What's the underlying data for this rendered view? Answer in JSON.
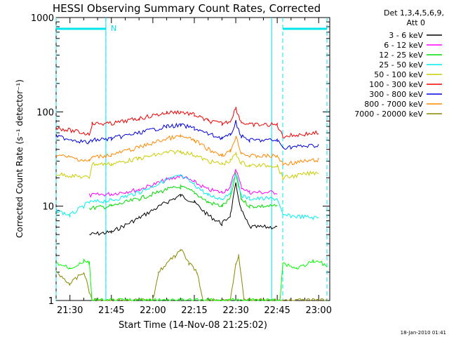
{
  "chart_data": {
    "type": "line",
    "title": "HESSI Observing Summary Count Rates, Corrected",
    "xlabel": "Start Time (14-Nov-08 21:25:02)",
    "ylabel": "Corrected Count Rate (s⁻¹ detector⁻¹)",
    "y_scale": "log",
    "ylim": [
      1,
      1000
    ],
    "xlim": [
      "21:25",
      "23:04"
    ],
    "x_ticks": [
      "21:30",
      "21:45",
      "22:00",
      "22:15",
      "22:30",
      "22:45",
      "23:00"
    ],
    "y_ticks": [
      "1",
      "10",
      "100",
      "1000"
    ],
    "legend_title": [
      "Det 1,3,4,5,6,9,",
      "Att 0"
    ],
    "legend_position": "right, outside plot",
    "night_markers": {
      "label": "N",
      "intervals": [
        [
          "21:25",
          "21:43"
        ],
        [
          "22:47",
          "23:03"
        ]
      ],
      "color": "#00e5ee"
    },
    "vertical_lines": [
      "21:43",
      "22:43"
    ],
    "series": [
      {
        "name": "3 - 6 keV",
        "color": "#000000",
        "points": [
          [
            "21:37",
            5
          ],
          [
            "21:45",
            5.3
          ],
          [
            "21:55",
            7.5
          ],
          [
            "22:05",
            11
          ],
          [
            "22:10",
            13
          ],
          [
            "22:15",
            11
          ],
          [
            "22:20",
            8
          ],
          [
            "22:25",
            6.5
          ],
          [
            "22:28",
            8
          ],
          [
            "22:30",
            17
          ],
          [
            "22:32",
            9
          ],
          [
            "22:35",
            6
          ],
          [
            "22:45",
            6
          ]
        ]
      },
      {
        "name": "6 - 12 keV",
        "color": "#ff00ff",
        "points": [
          [
            "21:37",
            13
          ],
          [
            "21:45",
            13.5
          ],
          [
            "21:55",
            15
          ],
          [
            "22:05",
            19
          ],
          [
            "22:10",
            21
          ],
          [
            "22:15",
            18
          ],
          [
            "22:20",
            15
          ],
          [
            "22:25",
            14
          ],
          [
            "22:28",
            16
          ],
          [
            "22:30",
            25
          ],
          [
            "22:32",
            16
          ],
          [
            "22:35",
            14
          ],
          [
            "22:45",
            14
          ]
        ]
      },
      {
        "name": "12 - 25 keV",
        "color": "#00dd00",
        "points": [
          [
            "21:37",
            9.5
          ],
          [
            "21:45",
            10
          ],
          [
            "21:55",
            12
          ],
          [
            "22:05",
            15
          ],
          [
            "22:10",
            16
          ],
          [
            "22:15",
            14
          ],
          [
            "22:20",
            11
          ],
          [
            "22:25",
            10
          ],
          [
            "22:28",
            12
          ],
          [
            "22:30",
            22
          ],
          [
            "22:32",
            12
          ],
          [
            "22:35",
            10
          ],
          [
            "22:45",
            10
          ]
        ]
      },
      {
        "name": "25 - 50 keV",
        "color": "#00eeee",
        "points": [
          [
            "21:25",
            9
          ],
          [
            "21:30",
            8
          ],
          [
            "21:37",
            11
          ],
          [
            "21:45",
            11.5
          ],
          [
            "21:55",
            14
          ],
          [
            "22:05",
            19
          ],
          [
            "22:10",
            21
          ],
          [
            "22:15",
            17
          ],
          [
            "22:20",
            13
          ],
          [
            "22:25",
            12
          ],
          [
            "22:28",
            14
          ],
          [
            "22:30",
            23
          ],
          [
            "22:32",
            13
          ],
          [
            "22:35",
            12
          ],
          [
            "22:45",
            12
          ],
          [
            "22:47",
            8
          ],
          [
            "23:00",
            7.5
          ]
        ]
      },
      {
        "name": "50 - 100 keV",
        "color": "#cccc00",
        "points": [
          [
            "21:25",
            22
          ],
          [
            "21:37",
            20
          ],
          [
            "21:38",
            28
          ],
          [
            "21:45",
            28
          ],
          [
            "21:55",
            32
          ],
          [
            "22:05",
            37
          ],
          [
            "22:10",
            38
          ],
          [
            "22:15",
            35
          ],
          [
            "22:20",
            30
          ],
          [
            "22:25",
            28
          ],
          [
            "22:28",
            30
          ],
          [
            "22:30",
            36
          ],
          [
            "22:32",
            29
          ],
          [
            "22:35",
            27
          ],
          [
            "22:45",
            27
          ],
          [
            "22:47",
            20
          ],
          [
            "23:00",
            23
          ]
        ]
      },
      {
        "name": "100 - 300 keV",
        "color": "#ee0000",
        "points": [
          [
            "21:25",
            68
          ],
          [
            "21:37",
            58
          ],
          [
            "21:38",
            75
          ],
          [
            "21:45",
            75
          ],
          [
            "21:55",
            85
          ],
          [
            "22:05",
            98
          ],
          [
            "22:10",
            100
          ],
          [
            "22:15",
            93
          ],
          [
            "22:20",
            80
          ],
          [
            "22:25",
            75
          ],
          [
            "22:28",
            80
          ],
          [
            "22:30",
            110
          ],
          [
            "22:32",
            78
          ],
          [
            "22:35",
            73
          ],
          [
            "22:45",
            73
          ],
          [
            "22:47",
            55
          ],
          [
            "23:00",
            60
          ]
        ]
      },
      {
        "name": "300 - 800 keV",
        "color": "#0000dd",
        "points": [
          [
            "21:25",
            55
          ],
          [
            "21:37",
            47
          ],
          [
            "21:38",
            50
          ],
          [
            "21:45",
            52
          ],
          [
            "21:55",
            60
          ],
          [
            "22:05",
            70
          ],
          [
            "22:10",
            72
          ],
          [
            "22:15",
            67
          ],
          [
            "22:20",
            58
          ],
          [
            "22:25",
            53
          ],
          [
            "22:28",
            56
          ],
          [
            "22:30",
            78
          ],
          [
            "22:32",
            55
          ],
          [
            "22:35",
            50
          ],
          [
            "22:45",
            50
          ],
          [
            "22:47",
            42
          ],
          [
            "23:00",
            44
          ]
        ]
      },
      {
        "name": "800 - 7000 keV",
        "color": "#ff8800",
        "points": [
          [
            "21:25",
            35
          ],
          [
            "21:37",
            30
          ],
          [
            "21:38",
            33
          ],
          [
            "21:45",
            35
          ],
          [
            "21:55",
            42
          ],
          [
            "22:05",
            52
          ],
          [
            "22:10",
            55
          ],
          [
            "22:15",
            50
          ],
          [
            "22:20",
            40
          ],
          [
            "22:25",
            35
          ],
          [
            "22:28",
            38
          ],
          [
            "22:30",
            55
          ],
          [
            "22:32",
            37
          ],
          [
            "22:35",
            34
          ],
          [
            "22:45",
            34
          ],
          [
            "22:47",
            28
          ],
          [
            "23:00",
            31
          ]
        ]
      },
      {
        "name": "7000 - 20000 keV",
        "color": "#888800",
        "points": [
          [
            "21:25",
            2
          ],
          [
            "21:30",
            1.5
          ],
          [
            "21:35",
            2
          ],
          [
            "21:38",
            1
          ],
          [
            "22:00",
            1
          ],
          [
            "22:02",
            2
          ],
          [
            "22:08",
            3
          ],
          [
            "22:10",
            3.5
          ],
          [
            "22:13",
            2.5
          ],
          [
            "22:16",
            2
          ],
          [
            "22:18",
            1
          ],
          [
            "22:28",
            1
          ],
          [
            "22:30",
            2.5
          ],
          [
            "22:31",
            3
          ],
          [
            "22:33",
            1
          ],
          [
            "23:03",
            1
          ]
        ]
      },
      {
        "name": "",
        "color": "#00ff00",
        "points": [
          [
            "21:25",
            2.5
          ],
          [
            "21:30",
            2.2
          ],
          [
            "21:35",
            2.6
          ],
          [
            "21:37",
            2.5
          ],
          [
            "21:38",
            1
          ],
          [
            "22:46",
            1
          ],
          [
            "22:47",
            2.5
          ],
          [
            "22:52",
            2.2
          ],
          [
            "22:58",
            2.6
          ],
          [
            "23:03",
            2.4
          ]
        ]
      }
    ]
  },
  "timestamp": "18-Jan-2010 01:41",
  "colors": {
    "axis": "#000000",
    "night": "#00e5ee",
    "background": "#ffffff"
  }
}
